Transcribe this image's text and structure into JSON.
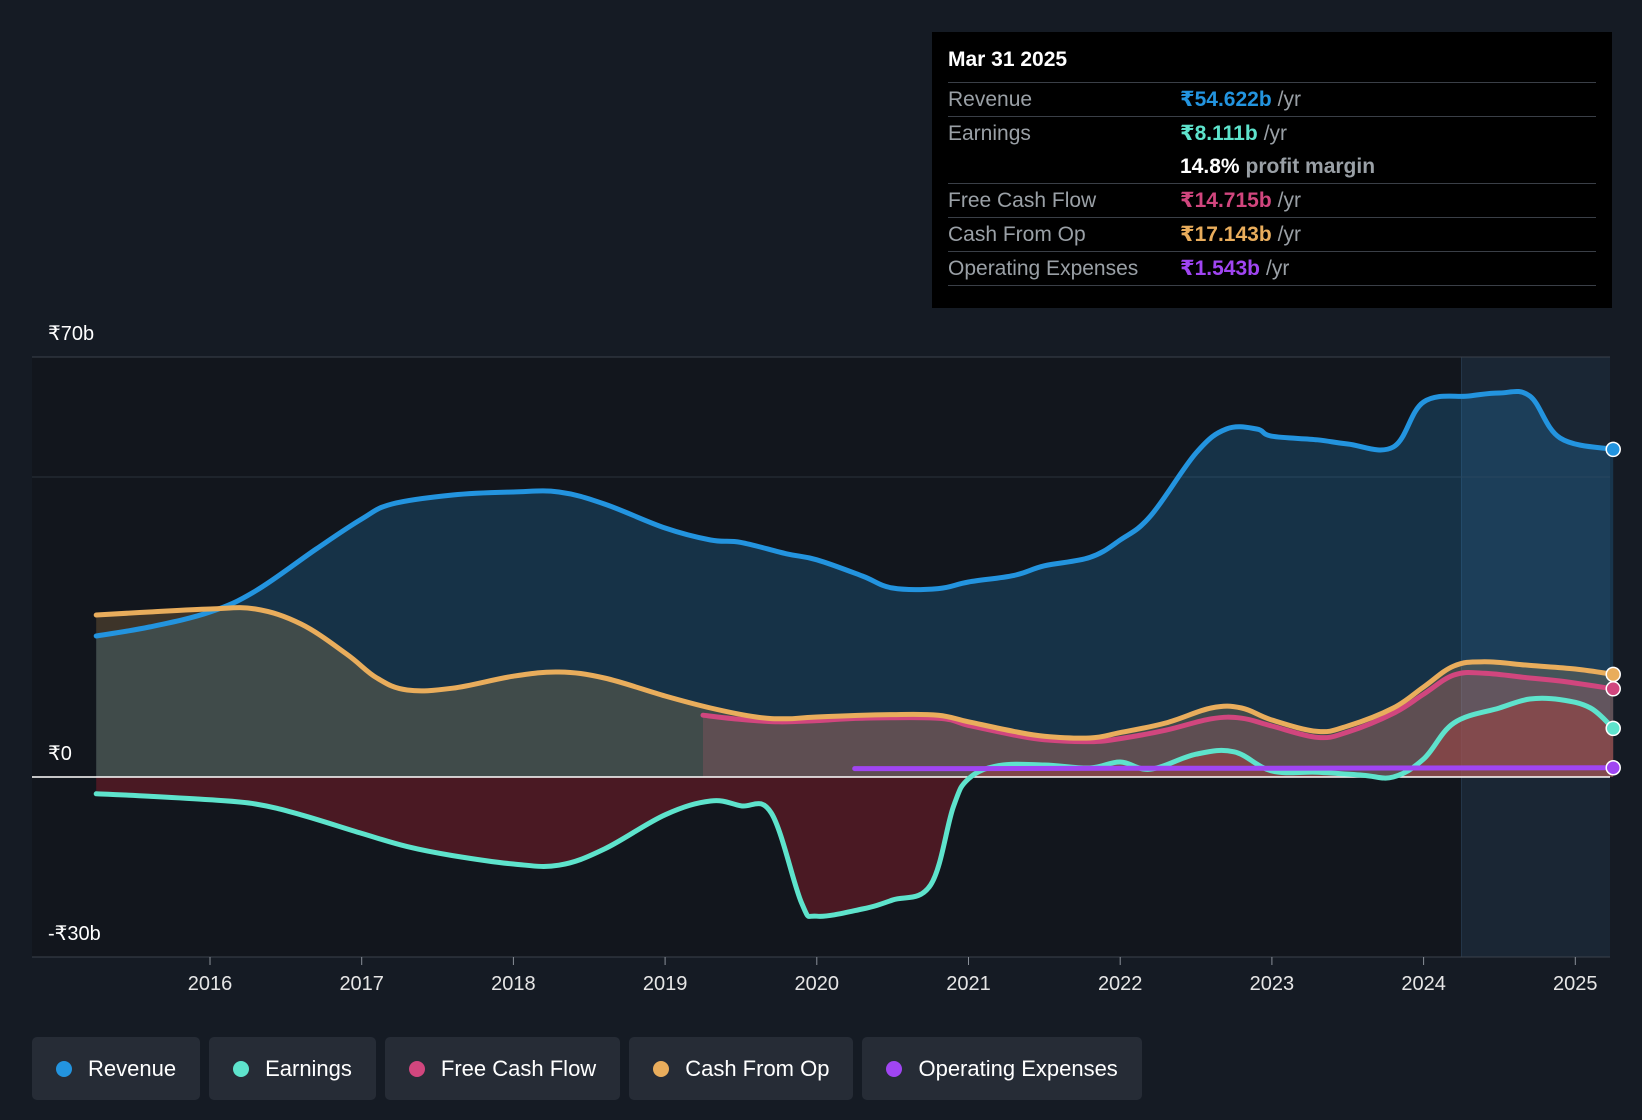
{
  "chart_data": {
    "type": "line",
    "y_axis": {
      "top_label": "₹70b",
      "zero_label": "₹0",
      "bottom_label": "-₹30b",
      "ylim": [
        -30,
        70
      ]
    },
    "x_ticks": [
      "2016",
      "2017",
      "2018",
      "2019",
      "2020",
      "2021",
      "2022",
      "2023",
      "2024",
      "2025"
    ],
    "forecast_start": 2024.25,
    "series": [
      {
        "name": "Revenue",
        "key": "revenue",
        "color": "#2394df",
        "fill": "rgba(35,148,223,0.22)",
        "points": [
          [
            2015.25,
            23.5
          ],
          [
            2015.6,
            25
          ],
          [
            2016,
            27.5
          ],
          [
            2016.3,
            31
          ],
          [
            2016.7,
            38
          ],
          [
            2017,
            43
          ],
          [
            2017.2,
            45.5
          ],
          [
            2017.6,
            47
          ],
          [
            2018,
            47.5
          ],
          [
            2018.3,
            47.5
          ],
          [
            2018.6,
            45.5
          ],
          [
            2019,
            41.5
          ],
          [
            2019.3,
            39.5
          ],
          [
            2019.5,
            39.1
          ],
          [
            2019.8,
            37.2
          ],
          [
            2020,
            36.2
          ],
          [
            2020.3,
            33.5
          ],
          [
            2020.5,
            31.5
          ],
          [
            2020.8,
            31.4
          ],
          [
            2021,
            32.5
          ],
          [
            2021.3,
            33.6
          ],
          [
            2021.5,
            35.2
          ],
          [
            2021.8,
            36.6
          ],
          [
            2022,
            39.5
          ],
          [
            2022.2,
            43.5
          ],
          [
            2022.5,
            54
          ],
          [
            2022.7,
            58
          ],
          [
            2022.9,
            58
          ],
          [
            2023,
            56.8
          ],
          [
            2023.3,
            56.2
          ],
          [
            2023.5,
            55.5
          ],
          [
            2023.8,
            55
          ],
          [
            2024,
            62.5
          ],
          [
            2024.3,
            63.5
          ],
          [
            2024.5,
            64
          ],
          [
            2024.7,
            63.5
          ],
          [
            2024.9,
            56.5
          ],
          [
            2025.25,
            54.6
          ]
        ]
      },
      {
        "name": "Earnings",
        "key": "earnings",
        "color": "#5ee3cc",
        "fill": "rgba(94,227,204,0.25)",
        "points": [
          [
            2015.25,
            -2.8
          ],
          [
            2015.6,
            -3.2
          ],
          [
            2016,
            -3.8
          ],
          [
            2016.3,
            -4.5
          ],
          [
            2016.6,
            -6.3
          ],
          [
            2017,
            -9.4
          ],
          [
            2017.3,
            -11.6
          ],
          [
            2017.6,
            -13.1
          ],
          [
            2018,
            -14.5
          ],
          [
            2018.3,
            -14.7
          ],
          [
            2018.6,
            -12
          ],
          [
            2019,
            -6.3
          ],
          [
            2019.3,
            -4
          ],
          [
            2019.5,
            -4.8
          ],
          [
            2019.7,
            -6
          ],
          [
            2019.9,
            -21
          ],
          [
            2020,
            -23.2
          ],
          [
            2020.3,
            -22
          ],
          [
            2020.5,
            -20.5
          ],
          [
            2020.75,
            -18
          ],
          [
            2020.9,
            -5
          ],
          [
            2021,
            -0.3
          ],
          [
            2021.2,
            1.9
          ],
          [
            2021.5,
            2
          ],
          [
            2021.8,
            1.5
          ],
          [
            2022,
            2.5
          ],
          [
            2022.2,
            1.3
          ],
          [
            2022.5,
            3.8
          ],
          [
            2022.75,
            4.2
          ],
          [
            2023,
            1
          ],
          [
            2023.3,
            0.8
          ],
          [
            2023.6,
            0.3
          ],
          [
            2023.8,
            0
          ],
          [
            2024,
            3
          ],
          [
            2024.2,
            9
          ],
          [
            2024.5,
            11.5
          ],
          [
            2024.7,
            13
          ],
          [
            2024.9,
            12.9
          ],
          [
            2025.1,
            11.5
          ],
          [
            2025.25,
            8.1
          ]
        ]
      },
      {
        "name": "Free Cash Flow",
        "key": "fcf",
        "color": "#d1467e",
        "fill": "rgba(209,70,126,0.20)",
        "points": [
          [
            2019.25,
            10.3
          ],
          [
            2019.5,
            9.6
          ],
          [
            2019.75,
            9.2
          ],
          [
            2020,
            9.4
          ],
          [
            2020.3,
            9.8
          ],
          [
            2020.8,
            9.8
          ],
          [
            2021,
            8.6
          ],
          [
            2021.3,
            7
          ],
          [
            2021.5,
            6.2
          ],
          [
            2021.8,
            5.9
          ],
          [
            2022,
            6.4
          ],
          [
            2022.3,
            7.8
          ],
          [
            2022.6,
            9.7
          ],
          [
            2022.8,
            9.8
          ],
          [
            2023,
            8.5
          ],
          [
            2023.3,
            6.6
          ],
          [
            2023.5,
            7.5
          ],
          [
            2023.8,
            10.6
          ],
          [
            2024,
            13.8
          ],
          [
            2024.2,
            17
          ],
          [
            2024.4,
            17.3
          ],
          [
            2024.7,
            16.5
          ],
          [
            2024.9,
            16
          ],
          [
            2025.25,
            14.7
          ]
        ]
      },
      {
        "name": "Cash From Op",
        "key": "cfo",
        "color": "#e9ad5c",
        "fill": "rgba(233,173,92,0.20)",
        "points": [
          [
            2015.25,
            27
          ],
          [
            2015.6,
            27.5
          ],
          [
            2016,
            28
          ],
          [
            2016.3,
            28
          ],
          [
            2016.6,
            25.5
          ],
          [
            2016.9,
            20.5
          ],
          [
            2017.1,
            16.5
          ],
          [
            2017.3,
            14.5
          ],
          [
            2017.6,
            14.8
          ],
          [
            2018,
            16.8
          ],
          [
            2018.3,
            17.5
          ],
          [
            2018.6,
            16.5
          ],
          [
            2019,
            13.5
          ],
          [
            2019.3,
            11.5
          ],
          [
            2019.6,
            10
          ],
          [
            2019.8,
            9.7
          ],
          [
            2020,
            10
          ],
          [
            2020.5,
            10.4
          ],
          [
            2020.8,
            10.3
          ],
          [
            2021,
            9.2
          ],
          [
            2021.3,
            7.6
          ],
          [
            2021.5,
            6.8
          ],
          [
            2021.8,
            6.5
          ],
          [
            2022,
            7.4
          ],
          [
            2022.3,
            9
          ],
          [
            2022.6,
            11.5
          ],
          [
            2022.8,
            11.5
          ],
          [
            2023,
            9.5
          ],
          [
            2023.3,
            7.6
          ],
          [
            2023.5,
            8.5
          ],
          [
            2023.8,
            11.5
          ],
          [
            2024,
            15
          ],
          [
            2024.2,
            18.5
          ],
          [
            2024.4,
            19.2
          ],
          [
            2024.7,
            18.6
          ],
          [
            2025,
            18
          ],
          [
            2025.25,
            17.1
          ]
        ]
      },
      {
        "name": "Operating Expenses",
        "key": "opex",
        "color": "#a045f2",
        "fill": "none",
        "points": [
          [
            2020.25,
            1.4
          ],
          [
            2021,
            1.4
          ],
          [
            2022,
            1.45
          ],
          [
            2023,
            1.45
          ],
          [
            2024,
            1.5
          ],
          [
            2025.25,
            1.54
          ]
        ]
      }
    ]
  },
  "tooltip": {
    "date": "Mar 31 2025",
    "rows": [
      {
        "label": "Revenue",
        "value": "₹54.622b",
        "unit": "/yr",
        "color": "#2394df"
      },
      {
        "label": "Earnings",
        "value": "₹8.111b",
        "unit": "/yr",
        "color": "#5ee3cc"
      }
    ],
    "margin": {
      "value": "14.8%",
      "label": "profit margin"
    },
    "rows2": [
      {
        "label": "Free Cash Flow",
        "value": "₹14.715b",
        "unit": "/yr",
        "color": "#d1467e"
      },
      {
        "label": "Cash From Op",
        "value": "₹17.143b",
        "unit": "/yr",
        "color": "#e9ad5c"
      },
      {
        "label": "Operating Expenses",
        "value": "₹1.543b",
        "unit": "/yr",
        "color": "#a045f2"
      }
    ]
  },
  "legend": [
    {
      "label": "Revenue",
      "color": "#2394df"
    },
    {
      "label": "Earnings",
      "color": "#5ee3cc"
    },
    {
      "label": "Free Cash Flow",
      "color": "#d1467e"
    },
    {
      "label": "Cash From Op",
      "color": "#e9ad5c"
    },
    {
      "label": "Operating Expenses",
      "color": "#a045f2"
    }
  ]
}
